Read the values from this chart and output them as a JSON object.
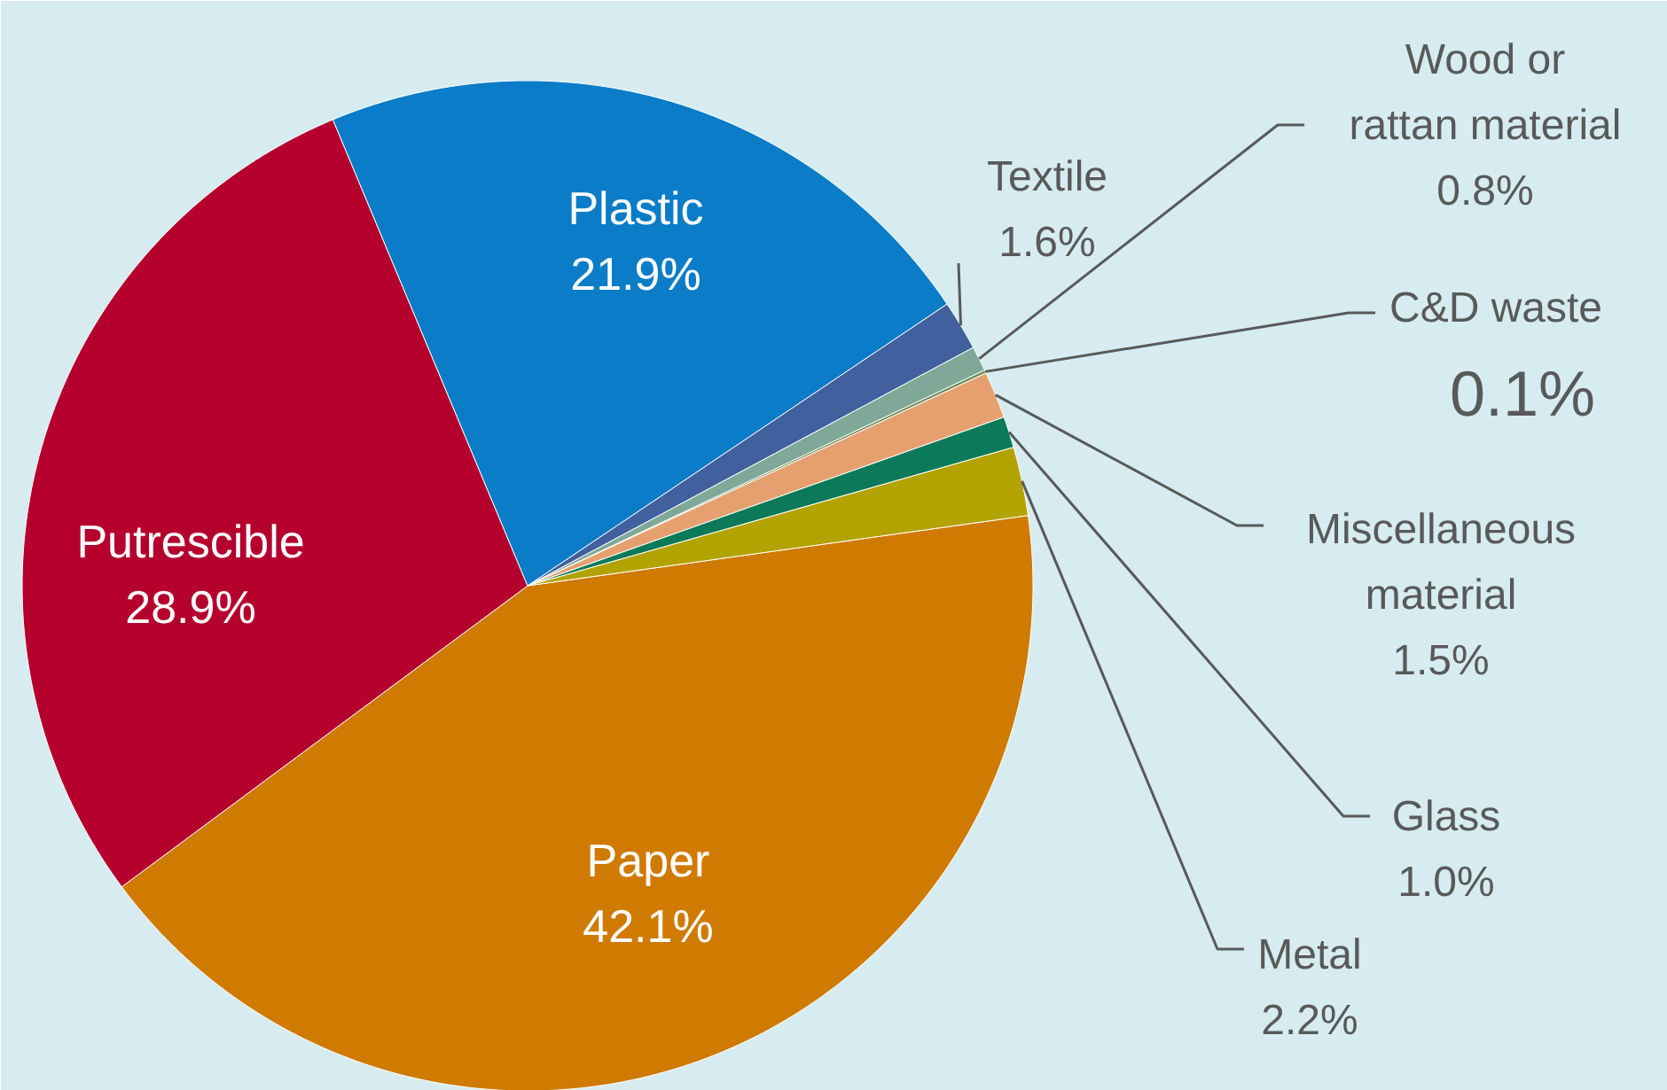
{
  "chart_data": {
    "type": "pie",
    "categories": [
      "Paper",
      "Putrescible",
      "Plastic",
      "Textile",
      "Wood or rattan material",
      "C&D waste",
      "Miscellaneous material",
      "Glass",
      "Metal"
    ],
    "values": [
      42.1,
      28.9,
      21.9,
      1.6,
      0.8,
      0.1,
      1.5,
      1.0,
      2.2
    ],
    "value_labels": [
      "42.1%",
      "28.9%",
      "21.9%",
      "1.6%",
      "0.8%",
      "0.1%",
      "1.5%",
      "1.0%",
      "2.2%"
    ],
    "colors": [
      "#cf7a00",
      "#b5002e",
      "#0a7cc8",
      "#40609e",
      "#7fa898",
      "#6f8c55",
      "#e6a070",
      "#0c7a58",
      "#b3a300"
    ]
  }
}
